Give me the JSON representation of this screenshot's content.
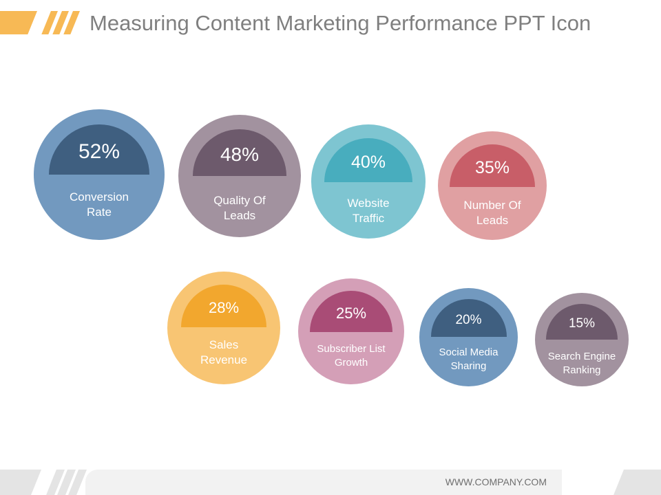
{
  "header": {
    "title": "Measuring Content Marketing Performance PPT Icon"
  },
  "metrics": [
    {
      "value": "52%",
      "label_line1": "Conversion",
      "label_line2": "Rate",
      "outer_color": "#7299bf",
      "inner_color": "#3f5f80"
    },
    {
      "value": "48%",
      "label_line1": "Quality Of",
      "label_line2": "Leads",
      "outer_color": "#a2929f",
      "inner_color": "#6d5a6c"
    },
    {
      "value": "40%",
      "label_line1": "Website",
      "label_line2": "Traffic",
      "outer_color": "#7ec5d1",
      "inner_color": "#48adbe"
    },
    {
      "value": "35%",
      "label_line1": "Number Of",
      "label_line2": "Leads",
      "outer_color": "#e0a0a2",
      "inner_color": "#c85e68"
    },
    {
      "value": "28%",
      "label_line1": "Sales",
      "label_line2": "Revenue",
      "outer_color": "#f8c573",
      "inner_color": "#f2a72e"
    },
    {
      "value": "25%",
      "label_line1": "Subscriber List",
      "label_line2": "Growth",
      "outer_color": "#d49fb7",
      "inner_color": "#a94c76"
    },
    {
      "value": "20%",
      "label_line1": "Social Media",
      "label_line2": "Sharing",
      "outer_color": "#7299bf",
      "inner_color": "#3f5f80"
    },
    {
      "value": "15%",
      "label_line1": "Search Engine",
      "label_line2": "Ranking",
      "outer_color": "#a2929f",
      "inner_color": "#6d5a6c"
    }
  ],
  "footer": {
    "website": "WWW.COMPANY.COM"
  }
}
